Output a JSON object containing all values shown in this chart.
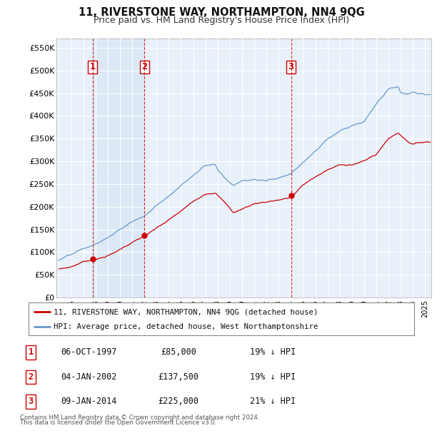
{
  "title": "11, RIVERSTONE WAY, NORTHAMPTON, NN4 9QG",
  "subtitle": "Price paid vs. HM Land Registry's House Price Index (HPI)",
  "ylabel_ticks": [
    "£0",
    "£50K",
    "£100K",
    "£150K",
    "£200K",
    "£250K",
    "£300K",
    "£350K",
    "£400K",
    "£450K",
    "£500K",
    "£550K"
  ],
  "ytick_values": [
    0,
    50000,
    100000,
    150000,
    200000,
    250000,
    300000,
    350000,
    400000,
    450000,
    500000,
    550000
  ],
  "ylim": [
    0,
    570000
  ],
  "xlim_start": 1994.8,
  "xlim_end": 2025.5,
  "red_line_label": "11, RIVERSTONE WAY, NORTHAMPTON, NN4 9QG (detached house)",
  "blue_line_label": "HPI: Average price, detached house, West Northamptonshire",
  "transactions": [
    {
      "num": 1,
      "date": "06-OCT-1997",
      "price": 85000,
      "year": 1997.77,
      "hpi_pct": "19% ↓ HPI"
    },
    {
      "num": 2,
      "date": "04-JAN-2002",
      "price": 137500,
      "year": 2002.01,
      "hpi_pct": "19% ↓ HPI"
    },
    {
      "num": 3,
      "date": "09-JAN-2014",
      "price": 225000,
      "year": 2014.02,
      "hpi_pct": "21% ↓ HPI"
    }
  ],
  "footer": "Contains HM Land Registry data © Crown copyright and database right 2024.\nThis data is licensed under the Open Government Licence v3.0.",
  "red_color": "#cc0000",
  "blue_color": "#6699cc",
  "shade_color": "#dce8f5",
  "dashed_color": "#cc0000",
  "box_color": "#cc0000",
  "grid_color": "#cccccc",
  "bg_color": "#e8f0fa",
  "bg_outer": "#ffffff"
}
